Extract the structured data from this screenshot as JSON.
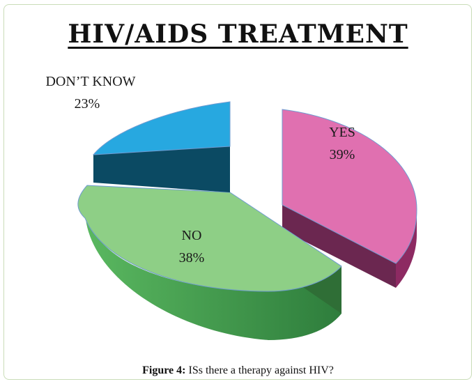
{
  "chart_data": {
    "type": "pie",
    "title": "HIV/AIDS TREATMENT",
    "categories": [
      "YES",
      "NO",
      "DON’T KNOW"
    ],
    "values": [
      39,
      38,
      23
    ],
    "value_labels": [
      "39%",
      "38%",
      "23%"
    ],
    "colors": {
      "YES": "#e070b0",
      "NO": "#8ecf86",
      "DON’T KNOW": "#27a8e0"
    },
    "style": "3d-exploded"
  },
  "caption": {
    "prefix": "Figure 4:",
    "text": " ISs there a therapy against HIV?"
  }
}
